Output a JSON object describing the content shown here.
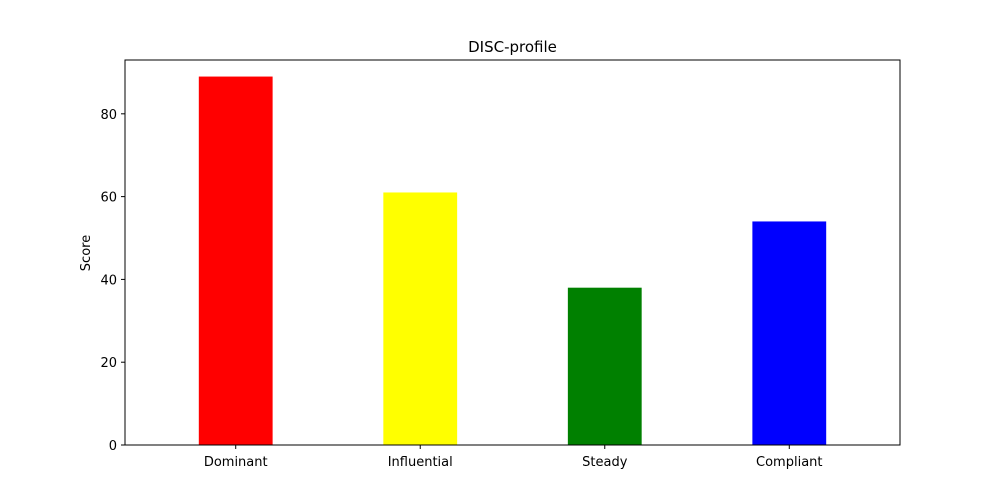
{
  "chart_data": {
    "type": "bar",
    "title": "DISC-profile",
    "xlabel": "",
    "ylabel": "Score",
    "categories": [
      "Dominant",
      "Influential",
      "Steady",
      "Compliant"
    ],
    "values": [
      89,
      61,
      38,
      54
    ],
    "colors": [
      "#ff0000",
      "#ffff00",
      "#008000",
      "#0000ff"
    ],
    "ylim": [
      0,
      93
    ],
    "yticks": [
      0,
      20,
      40,
      60,
      80
    ],
    "ytick_labels": [
      "0",
      "20",
      "40",
      "60",
      "80"
    ],
    "grid": false,
    "legend": "none"
  }
}
